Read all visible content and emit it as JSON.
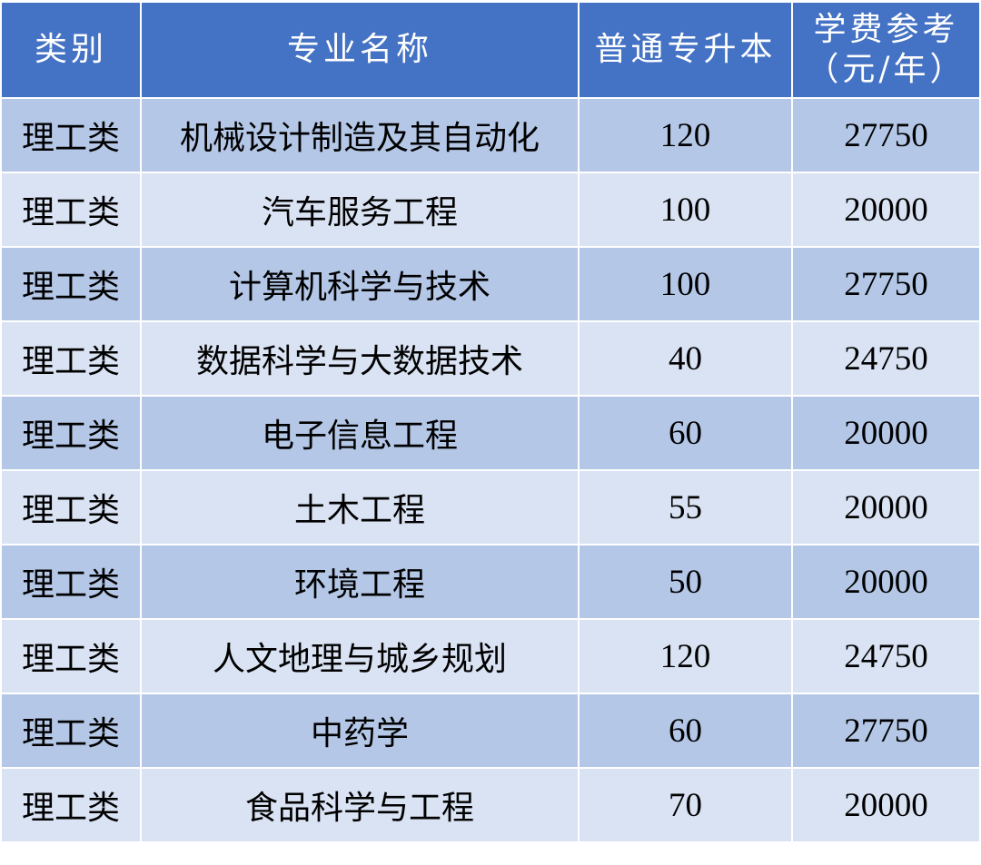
{
  "header": {
    "category": "类别",
    "major": "专业名称",
    "quota": "普通专升本",
    "tuition_line1": "学费参考",
    "tuition_line2": "（元/年）"
  },
  "rows": [
    {
      "category": "理工类",
      "major": "机械设计制造及其自动化",
      "quota": "120",
      "tuition": "27750"
    },
    {
      "category": "理工类",
      "major": "汽车服务工程",
      "quota": "100",
      "tuition": "20000"
    },
    {
      "category": "理工类",
      "major": "计算机科学与技术",
      "quota": "100",
      "tuition": "27750"
    },
    {
      "category": "理工类",
      "major": "数据科学与大数据技术",
      "quota": "40",
      "tuition": "24750"
    },
    {
      "category": "理工类",
      "major": "电子信息工程",
      "quota": "60",
      "tuition": "20000"
    },
    {
      "category": "理工类",
      "major": "土木工程",
      "quota": "55",
      "tuition": "20000"
    },
    {
      "category": "理工类",
      "major": "环境工程",
      "quota": "50",
      "tuition": "20000"
    },
    {
      "category": "理工类",
      "major": "人文地理与城乡规划",
      "quota": "120",
      "tuition": "24750"
    },
    {
      "category": "理工类",
      "major": "中药学",
      "quota": "60",
      "tuition": "27750"
    },
    {
      "category": "理工类",
      "major": "食品科学与工程",
      "quota": "70",
      "tuition": "20000"
    }
  ],
  "colors": {
    "header": "#4472C4",
    "row_dark": "#B4C7E7",
    "row_light": "#DAE3F3"
  }
}
